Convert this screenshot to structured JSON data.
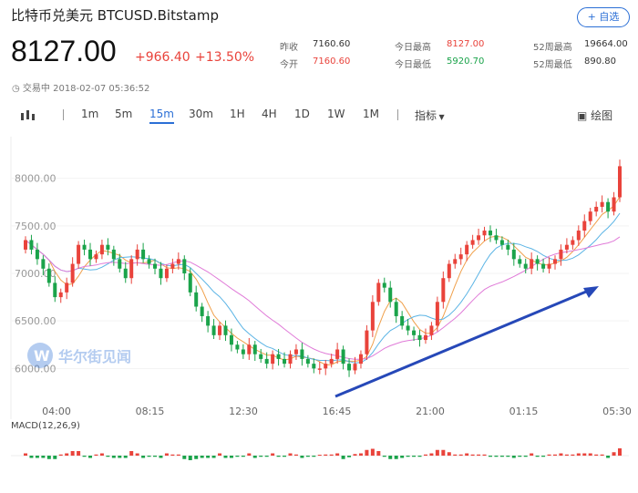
{
  "header": {
    "title": "比特币兑美元  BTCUSD.Bitstamp",
    "add_button": "+ 自选",
    "price": "8127.00",
    "change": "+966.40",
    "change_pct": "+13.50%",
    "status": "交易中 2018-02-07 05:36:52"
  },
  "stats": {
    "prev_close_label": "昨收",
    "prev_close": "7160.60",
    "open_label": "今开",
    "open": "7160.60",
    "high_label": "今日最高",
    "high": "8127.00",
    "low_label": "今日最低",
    "low": "5920.70",
    "w52_high_label": "52周最高",
    "w52_high": "19664.00",
    "w52_low_label": "52周最低",
    "w52_low": "890.80"
  },
  "toolbar": {
    "intervals": [
      "1m",
      "5m",
      "15m",
      "30m",
      "1H",
      "4H",
      "1D",
      "1W",
      "1M"
    ],
    "active": "15m",
    "indicator_label": "指标",
    "draw_label": "绘图"
  },
  "watermark": "华尔街见闻",
  "colors": {
    "up": "#e9433b",
    "down": "#1aa34a",
    "accent": "#2b6fd6",
    "ma1": "#f0a04b",
    "ma2": "#5bb4e5",
    "ma3": "#e07bd8"
  },
  "chart_data": {
    "type": "candlestick",
    "y_ticks": [
      "8000.00",
      "7500.00",
      "7000.00",
      "6500.00",
      "6000.00"
    ],
    "x_ticks": [
      "04:00",
      "08:15",
      "12:30",
      "16:45",
      "21:00",
      "01:15",
      "05:30"
    ],
    "ylim": [
      5850,
      8150
    ],
    "indicator_label": "MACD(12,26,9)",
    "closes": [
      7350,
      7250,
      7150,
      7050,
      6900,
      6750,
      6800,
      6900,
      7100,
      7300,
      7250,
      7150,
      7200,
      7300,
      7250,
      7150,
      7050,
      6950,
      7150,
      7250,
      7150,
      7100,
      7050,
      6950,
      7050,
      7100,
      7150,
      7000,
      6800,
      6650,
      6550,
      6450,
      6350,
      6450,
      6350,
      6250,
      6200,
      6150,
      6250,
      6150,
      6100,
      6050,
      6150,
      6100,
      6050,
      6150,
      6200,
      6100,
      6050,
      6000,
      6000,
      6050,
      6100,
      6200,
      6050,
      5980,
      6050,
      6150,
      6400,
      6700,
      6900,
      6850,
      6700,
      6550,
      6450,
      6400,
      6350,
      6300,
      6350,
      6450,
      6700,
      6950,
      7100,
      7150,
      7200,
      7300,
      7350,
      7400,
      7450,
      7400,
      7350,
      7300,
      7250,
      7150,
      7100,
      7050,
      7150,
      7100,
      7050,
      7100,
      7150,
      7250,
      7300,
      7350,
      7450,
      7550,
      7650,
      7700,
      7750,
      7650,
      7800,
      8127
    ]
  }
}
